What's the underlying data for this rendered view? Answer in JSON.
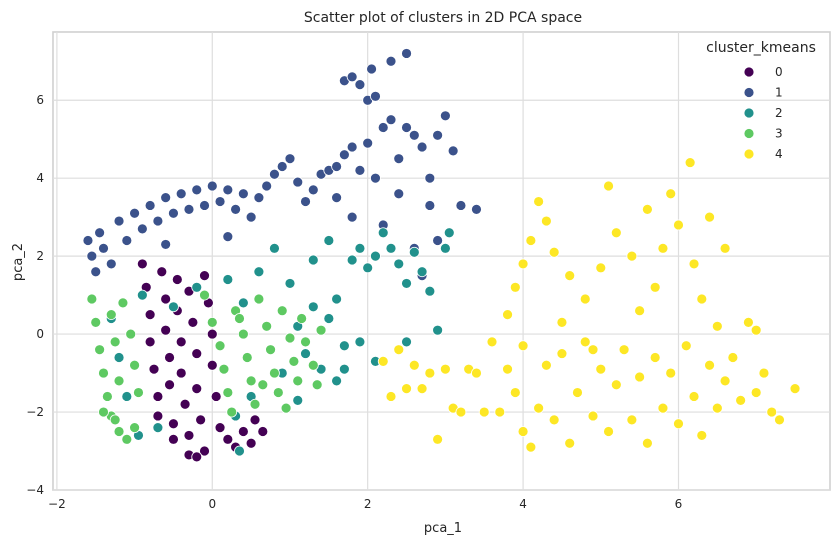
{
  "chart_data": {
    "type": "scatter",
    "title": "Scatter plot of clusters in 2D PCA space",
    "xlabel": "pca_1",
    "ylabel": "pca_2",
    "xlim": [
      -2.05,
      7.95
    ],
    "ylim": [
      -4.0,
      7.75
    ],
    "xticks": [
      -2,
      0,
      2,
      4,
      6
    ],
    "yticks": [
      -4,
      -2,
      0,
      2,
      4,
      6
    ],
    "grid": true,
    "legend": {
      "title": "cluster_kmeans",
      "placement": "top-right",
      "entries": [
        {
          "label": "0",
          "color": "#440154"
        },
        {
          "label": "1",
          "color": "#3b528b"
        },
        {
          "label": "2",
          "color": "#21918c"
        },
        {
          "label": "3",
          "color": "#5ec962"
        },
        {
          "label": "4",
          "color": "#fde725"
        }
      ]
    },
    "series": [
      {
        "name": "0",
        "color": "#440154",
        "points": [
          [
            -0.9,
            1.8
          ],
          [
            -0.85,
            1.2
          ],
          [
            -0.8,
            0.5
          ],
          [
            -0.8,
            -0.2
          ],
          [
            -0.75,
            -0.9
          ],
          [
            -0.7,
            -1.6
          ],
          [
            -0.7,
            -2.1
          ],
          [
            -0.65,
            1.6
          ],
          [
            -0.6,
            0.9
          ],
          [
            -0.6,
            0.1
          ],
          [
            -0.55,
            -0.6
          ],
          [
            -0.55,
            -1.3
          ],
          [
            -0.5,
            -2.3
          ],
          [
            -0.5,
            -2.7
          ],
          [
            -0.45,
            1.4
          ],
          [
            -0.45,
            0.6
          ],
          [
            -0.4,
            -0.2
          ],
          [
            -0.4,
            -1.0
          ],
          [
            -0.35,
            -1.8
          ],
          [
            -0.3,
            -2.6
          ],
          [
            -0.3,
            1.1
          ],
          [
            -0.25,
            0.3
          ],
          [
            -0.2,
            -0.5
          ],
          [
            -0.2,
            -1.4
          ],
          [
            -0.15,
            -2.2
          ],
          [
            -0.1,
            -3.0
          ],
          [
            -0.1,
            1.5
          ],
          [
            -0.05,
            0.8
          ],
          [
            0.0,
            0.0
          ],
          [
            0.0,
            -0.8
          ],
          [
            0.05,
            -1.6
          ],
          [
            0.1,
            -2.4
          ],
          [
            -0.3,
            -3.1
          ],
          [
            0.2,
            -2.7
          ],
          [
            0.3,
            -2.9
          ],
          [
            0.4,
            -2.5
          ],
          [
            0.5,
            -2.8
          ],
          [
            0.55,
            -2.2
          ],
          [
            0.65,
            -2.5
          ],
          [
            -0.2,
            -3.15
          ]
        ]
      },
      {
        "name": "1",
        "color": "#3b528b",
        "points": [
          [
            -1.6,
            2.4
          ],
          [
            -1.55,
            2.0
          ],
          [
            -1.5,
            1.6
          ],
          [
            -1.45,
            2.6
          ],
          [
            -1.4,
            2.2
          ],
          [
            -1.3,
            1.8
          ],
          [
            -1.2,
            2.9
          ],
          [
            -1.1,
            2.4
          ],
          [
            -1.0,
            3.1
          ],
          [
            -0.9,
            2.7
          ],
          [
            -0.8,
            3.3
          ],
          [
            -0.7,
            2.9
          ],
          [
            -0.6,
            3.5
          ],
          [
            -0.5,
            3.1
          ],
          [
            -0.4,
            3.6
          ],
          [
            -0.3,
            3.2
          ],
          [
            -0.2,
            3.7
          ],
          [
            -0.1,
            3.3
          ],
          [
            0.0,
            3.8
          ],
          [
            0.1,
            3.4
          ],
          [
            0.2,
            3.7
          ],
          [
            0.3,
            3.2
          ],
          [
            0.4,
            3.6
          ],
          [
            0.5,
            3.0
          ],
          [
            0.6,
            3.5
          ],
          [
            0.7,
            3.8
          ],
          [
            0.8,
            4.1
          ],
          [
            0.9,
            4.3
          ],
          [
            1.0,
            4.5
          ],
          [
            1.1,
            3.9
          ],
          [
            1.2,
            3.4
          ],
          [
            1.3,
            3.7
          ],
          [
            1.4,
            4.1
          ],
          [
            1.5,
            4.2
          ],
          [
            1.6,
            4.3
          ],
          [
            1.7,
            4.6
          ],
          [
            1.8,
            4.8
          ],
          [
            1.9,
            4.2
          ],
          [
            2.0,
            4.9
          ],
          [
            2.1,
            4.0
          ],
          [
            2.2,
            5.3
          ],
          [
            2.3,
            5.5
          ],
          [
            2.4,
            4.5
          ],
          [
            2.5,
            5.3
          ],
          [
            2.6,
            5.1
          ],
          [
            2.7,
            4.8
          ],
          [
            2.8,
            4.0
          ],
          [
            2.9,
            5.1
          ],
          [
            3.0,
            5.6
          ],
          [
            3.1,
            4.7
          ],
          [
            3.2,
            3.3
          ],
          [
            3.4,
            3.2
          ],
          [
            1.7,
            6.5
          ],
          [
            1.8,
            6.6
          ],
          [
            1.9,
            6.4
          ],
          [
            2.0,
            6.0
          ],
          [
            2.05,
            6.8
          ],
          [
            2.1,
            6.1
          ],
          [
            2.5,
            7.2
          ],
          [
            2.3,
            7.0
          ],
          [
            1.6,
            3.5
          ],
          [
            1.8,
            3.0
          ],
          [
            2.2,
            2.8
          ],
          [
            2.4,
            3.6
          ],
          [
            2.6,
            2.2
          ],
          [
            2.7,
            1.5
          ],
          [
            2.8,
            3.3
          ],
          [
            2.9,
            2.4
          ],
          [
            0.2,
            2.5
          ],
          [
            -0.6,
            2.3
          ]
        ]
      },
      {
        "name": "2",
        "color": "#21918c",
        "points": [
          [
            -0.9,
            1.0
          ],
          [
            -0.5,
            0.7
          ],
          [
            -0.2,
            1.2
          ],
          [
            0.2,
            1.4
          ],
          [
            0.4,
            0.8
          ],
          [
            0.6,
            1.6
          ],
          [
            0.8,
            2.2
          ],
          [
            1.0,
            1.3
          ],
          [
            1.1,
            0.2
          ],
          [
            1.2,
            -0.5
          ],
          [
            1.3,
            0.7
          ],
          [
            1.4,
            -0.9
          ],
          [
            1.5,
            0.4
          ],
          [
            1.6,
            -1.2
          ],
          [
            1.7,
            -0.3
          ],
          [
            1.8,
            1.9
          ],
          [
            1.9,
            2.2
          ],
          [
            2.0,
            1.7
          ],
          [
            2.1,
            2.0
          ],
          [
            2.2,
            2.6
          ],
          [
            2.3,
            2.2
          ],
          [
            2.4,
            1.8
          ],
          [
            2.5,
            1.3
          ],
          [
            2.6,
            2.1
          ],
          [
            2.7,
            1.6
          ],
          [
            2.8,
            1.1
          ],
          [
            2.9,
            0.1
          ],
          [
            3.0,
            2.2
          ],
          [
            3.05,
            2.6
          ],
          [
            2.5,
            -0.2
          ],
          [
            1.6,
            0.9
          ],
          [
            1.9,
            -0.2
          ],
          [
            1.5,
            2.4
          ],
          [
            1.3,
            1.9
          ],
          [
            0.9,
            -1.0
          ],
          [
            0.5,
            -1.6
          ],
          [
            0.3,
            -2.1
          ],
          [
            0.35,
            -3.0
          ],
          [
            -0.7,
            -2.4
          ],
          [
            -1.1,
            -1.6
          ],
          [
            -1.2,
            -0.6
          ],
          [
            -1.3,
            0.4
          ],
          [
            -0.95,
            -2.6
          ],
          [
            1.1,
            -1.7
          ],
          [
            1.7,
            -0.9
          ],
          [
            2.1,
            -0.7
          ]
        ]
      },
      {
        "name": "3",
        "color": "#5ec962",
        "points": [
          [
            -1.55,
            0.9
          ],
          [
            -1.5,
            0.3
          ],
          [
            -1.45,
            -0.4
          ],
          [
            -1.4,
            -1.0
          ],
          [
            -1.35,
            -1.6
          ],
          [
            -1.3,
            -2.1
          ],
          [
            -1.2,
            -2.5
          ],
          [
            -1.1,
            -2.7
          ],
          [
            -1.0,
            -2.4
          ],
          [
            -1.15,
            0.8
          ],
          [
            -1.05,
            0.0
          ],
          [
            -1.0,
            -0.8
          ],
          [
            -0.95,
            -1.5
          ],
          [
            -1.3,
            0.5
          ],
          [
            -1.25,
            -0.2
          ],
          [
            -1.2,
            -1.2
          ],
          [
            -0.1,
            1.0
          ],
          [
            0.0,
            0.3
          ],
          [
            0.1,
            -0.3
          ],
          [
            0.15,
            -0.9
          ],
          [
            0.2,
            -1.5
          ],
          [
            0.25,
            -2.0
          ],
          [
            0.3,
            0.6
          ],
          [
            0.4,
            0.0
          ],
          [
            0.45,
            -0.6
          ],
          [
            0.5,
            -1.2
          ],
          [
            0.55,
            -1.8
          ],
          [
            0.6,
            0.9
          ],
          [
            0.7,
            0.2
          ],
          [
            0.75,
            -0.4
          ],
          [
            0.8,
            -1.0
          ],
          [
            0.85,
            -1.5
          ],
          [
            0.9,
            0.6
          ],
          [
            1.0,
            -0.1
          ],
          [
            1.05,
            -0.7
          ],
          [
            1.1,
            -1.2
          ],
          [
            1.15,
            0.4
          ],
          [
            1.2,
            -0.2
          ],
          [
            1.3,
            -0.8
          ],
          [
            1.35,
            -1.3
          ],
          [
            1.4,
            0.1
          ],
          [
            0.95,
            -1.9
          ],
          [
            0.65,
            -1.3
          ],
          [
            0.35,
            0.4
          ],
          [
            -1.25,
            -2.2
          ],
          [
            -1.4,
            -2.0
          ]
        ]
      },
      {
        "name": "4",
        "color": "#fde725",
        "points": [
          [
            2.2,
            -0.7
          ],
          [
            2.3,
            -1.6
          ],
          [
            2.4,
            -0.4
          ],
          [
            2.5,
            -1.4
          ],
          [
            2.6,
            -0.8
          ],
          [
            2.7,
            -1.4
          ],
          [
            2.8,
            -1.0
          ],
          [
            2.9,
            -2.7
          ],
          [
            3.0,
            -0.9
          ],
          [
            3.1,
            -1.9
          ],
          [
            3.2,
            -2.0
          ],
          [
            3.3,
            -0.9
          ],
          [
            3.4,
            -1.0
          ],
          [
            3.5,
            -2.0
          ],
          [
            3.6,
            -0.2
          ],
          [
            3.7,
            -2.0
          ],
          [
            3.8,
            -0.9
          ],
          [
            3.9,
            -1.5
          ],
          [
            4.0,
            -2.5
          ],
          [
            4.0,
            -0.3
          ],
          [
            4.1,
            -2.9
          ],
          [
            4.2,
            -1.9
          ],
          [
            4.3,
            -0.8
          ],
          [
            4.4,
            -2.2
          ],
          [
            4.5,
            -0.5
          ],
          [
            4.6,
            -2.8
          ],
          [
            4.7,
            -1.5
          ],
          [
            4.8,
            -0.2
          ],
          [
            4.9,
            -2.1
          ],
          [
            5.0,
            -0.9
          ],
          [
            5.1,
            -2.5
          ],
          [
            5.2,
            -1.3
          ],
          [
            5.3,
            -0.4
          ],
          [
            5.4,
            -2.2
          ],
          [
            5.5,
            -1.1
          ],
          [
            5.6,
            -2.8
          ],
          [
            5.7,
            -0.6
          ],
          [
            5.8,
            -1.9
          ],
          [
            5.9,
            -1.0
          ],
          [
            6.0,
            -2.3
          ],
          [
            6.1,
            -0.3
          ],
          [
            6.2,
            -1.6
          ],
          [
            6.3,
            -2.6
          ],
          [
            6.4,
            -0.8
          ],
          [
            6.5,
            -1.9
          ],
          [
            6.6,
            -1.2
          ],
          [
            6.7,
            -0.6
          ],
          [
            6.8,
            -1.7
          ],
          [
            7.0,
            -1.5
          ],
          [
            7.1,
            -1.0
          ],
          [
            7.2,
            -2.0
          ],
          [
            7.3,
            -2.2
          ],
          [
            7.5,
            -1.4
          ],
          [
            4.2,
            3.4
          ],
          [
            4.3,
            2.9
          ],
          [
            4.1,
            2.4
          ],
          [
            4.0,
            1.8
          ],
          [
            4.4,
            2.1
          ],
          [
            4.6,
            1.5
          ],
          [
            4.8,
            0.9
          ],
          [
            5.0,
            1.7
          ],
          [
            5.2,
            2.6
          ],
          [
            5.4,
            2.0
          ],
          [
            5.6,
            3.2
          ],
          [
            5.8,
            2.2
          ],
          [
            5.9,
            3.6
          ],
          [
            6.0,
            2.8
          ],
          [
            6.15,
            4.4
          ],
          [
            6.2,
            1.8
          ],
          [
            6.4,
            3.0
          ],
          [
            6.6,
            2.2
          ],
          [
            5.1,
            3.8
          ],
          [
            5.7,
            1.2
          ],
          [
            3.8,
            0.5
          ],
          [
            3.9,
            1.2
          ],
          [
            4.5,
            0.3
          ],
          [
            4.9,
            -0.4
          ],
          [
            5.5,
            0.6
          ],
          [
            6.3,
            0.9
          ],
          [
            6.5,
            0.2
          ],
          [
            6.9,
            0.3
          ],
          [
            7.0,
            0.1
          ]
        ]
      }
    ]
  }
}
